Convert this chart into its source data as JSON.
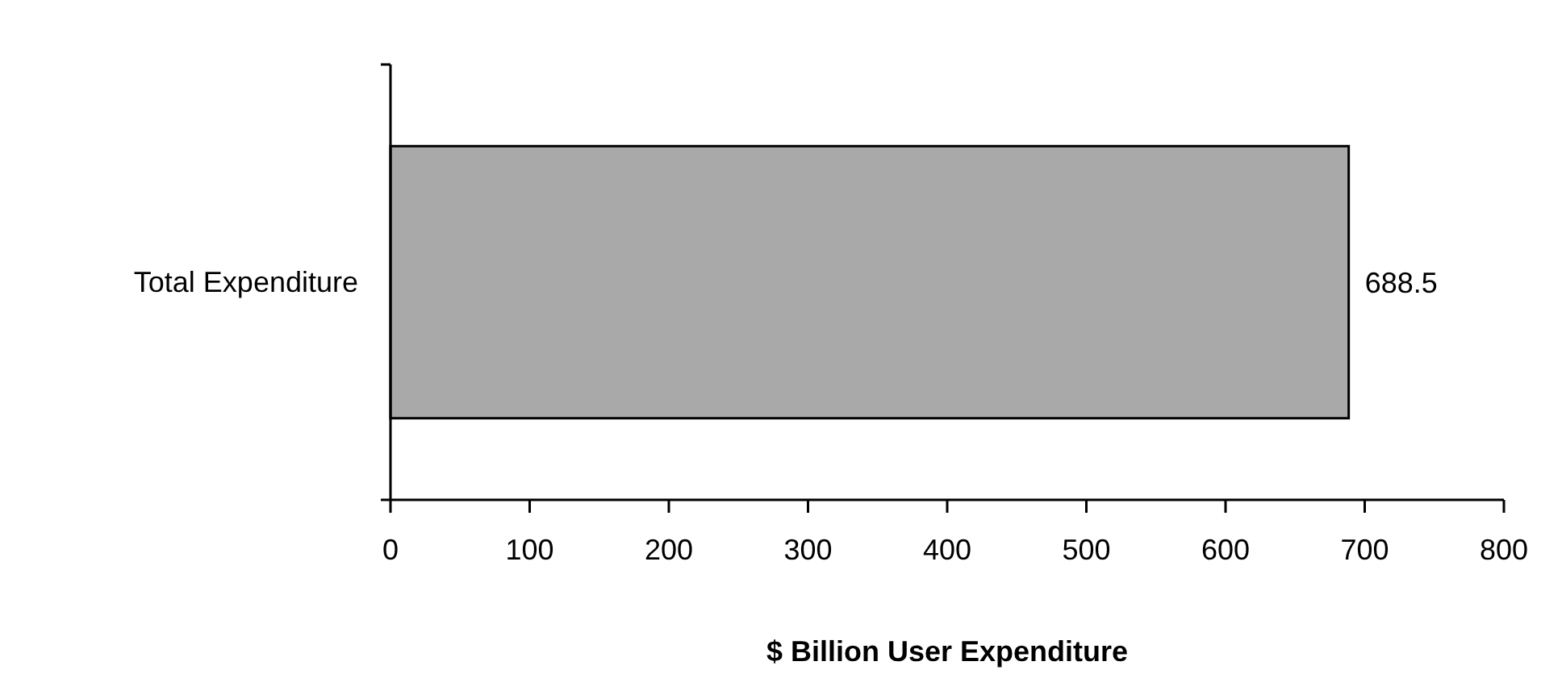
{
  "chart_data": {
    "type": "bar",
    "orientation": "horizontal",
    "categories": [
      "Total Expenditure"
    ],
    "values": [
      688.5
    ],
    "color": "#a9a9a9",
    "xlabel": "$ Billion User Expenditure",
    "xlim": [
      0,
      800
    ],
    "xticks": [
      0,
      100,
      200,
      300,
      400,
      500,
      600,
      700,
      800
    ],
    "data_labels": true
  }
}
